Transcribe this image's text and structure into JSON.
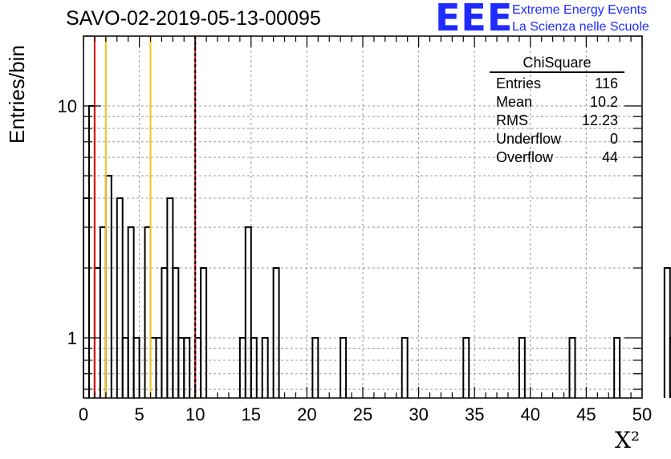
{
  "chart_data": {
    "type": "histogram",
    "title": "SAVO-02-2019-05-13-00095",
    "xlabel": "X²",
    "ylabel": "Entries/bin",
    "xlim": [
      0,
      50
    ],
    "ylim": [
      0.55,
      20
    ],
    "y_scale": "log",
    "bin_width": 0.5,
    "x_ticks": [
      "0",
      "5",
      "10",
      "15",
      "20",
      "25",
      "30",
      "35",
      "40",
      "45",
      "50"
    ],
    "y_ticks": [
      "1",
      "10"
    ],
    "grid": true,
    "values": [
      4,
      10,
      2,
      3,
      5,
      0,
      4,
      1,
      3,
      1,
      0,
      3,
      1,
      1,
      2,
      4,
      2,
      1,
      1,
      0,
      1,
      2,
      0,
      0,
      0,
      0,
      0,
      0,
      1,
      3,
      1,
      0,
      1,
      0,
      2,
      0,
      0,
      0,
      0,
      0,
      0,
      1,
      0,
      0,
      0,
      0,
      1,
      0,
      0,
      0,
      0,
      0,
      0,
      0,
      0,
      0,
      0,
      1,
      0,
      0,
      0,
      0,
      0,
      0,
      0,
      0,
      0,
      0,
      1,
      0,
      0,
      0,
      0,
      0,
      0,
      0,
      0,
      0,
      1,
      0,
      0,
      0,
      0,
      0,
      0,
      0,
      0,
      1,
      0,
      0,
      0,
      0,
      0,
      0,
      0,
      1,
      0,
      0,
      0,
      0,
      0,
      0,
      0,
      0,
      2,
      1,
      0,
      0,
      0,
      0,
      0,
      0,
      0,
      0,
      0,
      0,
      0,
      0,
      0,
      0
    ],
    "vertical_lines": [
      {
        "x": 1,
        "color": "#dd1111",
        "style": "solid"
      },
      {
        "x": 2,
        "color": "#f2c218",
        "style": "solid"
      },
      {
        "x": 6,
        "color": "#f2c218",
        "style": "solid"
      },
      {
        "x": 10,
        "color": "#dd1111",
        "style": "solid"
      },
      {
        "x": 10,
        "color": "#000000",
        "style": "dashed"
      }
    ],
    "stats": {
      "name": "ChiSquare",
      "rows": [
        {
          "label": "Entries",
          "value": "116"
        },
        {
          "label": "Mean",
          "value": "10.2"
        },
        {
          "label": "RMS",
          "value": "12.23"
        },
        {
          "label": "Underflow",
          "value": "0"
        },
        {
          "label": "Overflow",
          "value": "44"
        }
      ]
    }
  },
  "logo": {
    "mark": "EEE",
    "line1": "Extreme Energy Events",
    "line2": "La Scienza nelle Scuole",
    "color": "#1f2bff"
  }
}
